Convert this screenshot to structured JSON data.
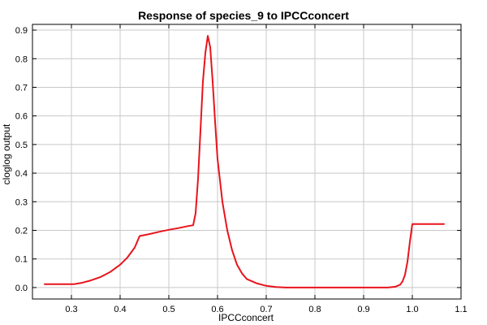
{
  "chart_data": {
    "type": "line",
    "title": "Response of species_9 to IPCCconcert",
    "xlabel": "IPCCconcert",
    "ylabel": "cloglog output",
    "xlim": [
      0.22,
      1.1
    ],
    "ylim": [
      -0.04,
      0.92
    ],
    "xticks": [
      0.3,
      0.4,
      0.5,
      0.6,
      0.7,
      0.8,
      0.9,
      1.0,
      1.1
    ],
    "xtick_labels": [
      "0.3",
      "0.4",
      "0.5",
      "0.6",
      "0.7",
      "0.8",
      "0.9",
      "1.0",
      "1.1"
    ],
    "yticks": [
      0.0,
      0.1,
      0.2,
      0.3,
      0.4,
      0.5,
      0.6,
      0.7,
      0.8,
      0.9
    ],
    "ytick_labels": [
      "0.0",
      "0.1",
      "0.2",
      "0.3",
      "0.4",
      "0.5",
      "0.6",
      "0.7",
      "0.8",
      "0.9"
    ],
    "grid": true,
    "line_color": "#e8141c",
    "series": [
      {
        "x": [
          0.245,
          0.26,
          0.28,
          0.305,
          0.32,
          0.34,
          0.36,
          0.38,
          0.4,
          0.415,
          0.43,
          0.44,
          0.46,
          0.48,
          0.5,
          0.52,
          0.54,
          0.55,
          0.555,
          0.56,
          0.565,
          0.57,
          0.575,
          0.58,
          0.585,
          0.59,
          0.595,
          0.6,
          0.61,
          0.62,
          0.63,
          0.64,
          0.65,
          0.66,
          0.68,
          0.7,
          0.72,
          0.74,
          0.8,
          0.9,
          0.95,
          0.965,
          0.975,
          0.98,
          0.985,
          0.99,
          0.995,
          1.0,
          1.03,
          1.065
        ],
        "y": [
          0.012,
          0.012,
          0.012,
          0.012,
          0.016,
          0.025,
          0.037,
          0.055,
          0.08,
          0.105,
          0.14,
          0.18,
          0.187,
          0.195,
          0.202,
          0.208,
          0.215,
          0.218,
          0.26,
          0.38,
          0.55,
          0.72,
          0.82,
          0.88,
          0.84,
          0.72,
          0.58,
          0.45,
          0.3,
          0.2,
          0.13,
          0.08,
          0.05,
          0.03,
          0.015,
          0.006,
          0.002,
          0.0,
          0.0,
          0.0,
          0.0,
          0.003,
          0.01,
          0.022,
          0.045,
          0.09,
          0.16,
          0.222,
          0.222,
          0.222
        ]
      }
    ]
  }
}
